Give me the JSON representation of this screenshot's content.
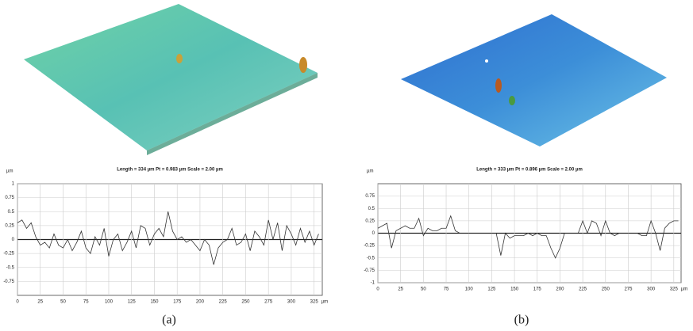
{
  "chart_data": [
    {
      "type": "line",
      "title": "Length = 334 µm  Pt = 0.983 µm  Scale = 2.00 µm",
      "y_label": "µm",
      "x_label": "µm",
      "caption": "(a)",
      "color": "#333333",
      "x": [
        0,
        5,
        10,
        15,
        20,
        25,
        30,
        35,
        40,
        45,
        50,
        55,
        60,
        65,
        70,
        75,
        80,
        85,
        90,
        95,
        100,
        105,
        110,
        115,
        120,
        125,
        130,
        135,
        140,
        145,
        150,
        155,
        160,
        165,
        170,
        175,
        180,
        185,
        190,
        195,
        200,
        205,
        210,
        215,
        220,
        225,
        230,
        235,
        240,
        245,
        250,
        255,
        260,
        265,
        270,
        275,
        280,
        285,
        290,
        295,
        300,
        305,
        310,
        315,
        320,
        325,
        330
      ],
      "values": [
        0.3,
        0.35,
        0.2,
        0.3,
        0.05,
        -0.1,
        -0.05,
        -0.15,
        0.1,
        -0.1,
        -0.15,
        0.0,
        -0.2,
        -0.05,
        0.15,
        -0.15,
        -0.25,
        0.05,
        -0.1,
        0.2,
        -0.3,
        0.0,
        0.1,
        -0.2,
        -0.05,
        0.15,
        -0.15,
        0.25,
        0.2,
        -0.1,
        0.1,
        0.2,
        0.05,
        0.5,
        0.15,
        0.0,
        0.05,
        -0.05,
        0.0,
        -0.1,
        -0.2,
        0.0,
        -0.1,
        -0.45,
        -0.15,
        -0.05,
        0.0,
        0.2,
        -0.1,
        -0.05,
        0.1,
        -0.2,
        0.15,
        0.05,
        -0.1,
        0.35,
        0.0,
        0.3,
        -0.2,
        0.25,
        0.1,
        -0.1,
        0.2,
        -0.05,
        0.15,
        -0.1,
        0.1
      ],
      "xlim": [
        0,
        334
      ],
      "xticks": [
        0,
        25,
        50,
        75,
        100,
        125,
        150,
        175,
        200,
        225,
        250,
        275,
        300,
        325
      ],
      "ylim": [
        -1,
        1
      ],
      "yticks": [
        -0.75,
        -0.5,
        -0.25,
        0,
        0.25,
        0.5,
        0.75,
        1
      ],
      "grid": true
    },
    {
      "type": "line",
      "title": "Length = 333 µm  Pt = 0.896 µm  Scale = 2.00 µm",
      "y_label": "µm",
      "x_label": "µm",
      "caption": "(b)",
      "color": "#333333",
      "x": [
        0,
        5,
        10,
        15,
        20,
        25,
        30,
        35,
        40,
        45,
        50,
        55,
        60,
        65,
        70,
        75,
        80,
        85,
        90,
        95,
        100,
        105,
        110,
        115,
        120,
        125,
        130,
        135,
        140,
        145,
        150,
        155,
        160,
        165,
        170,
        175,
        180,
        185,
        190,
        195,
        200,
        205,
        210,
        215,
        220,
        225,
        230,
        235,
        240,
        245,
        250,
        255,
        260,
        265,
        270,
        275,
        280,
        285,
        290,
        295,
        300,
        305,
        310,
        315,
        320,
        325,
        330
      ],
      "values": [
        0.1,
        0.15,
        0.2,
        -0.3,
        0.05,
        0.1,
        0.15,
        0.1,
        0.1,
        0.3,
        -0.05,
        0.1,
        0.05,
        0.05,
        0.1,
        0.1,
        0.35,
        0.05,
        0.0,
        0.0,
        0.0,
        0.0,
        0.0,
        0.0,
        0.0,
        0.0,
        0.0,
        -0.45,
        0.0,
        -0.1,
        -0.05,
        -0.05,
        -0.05,
        0.0,
        -0.05,
        0.0,
        -0.05,
        -0.05,
        -0.3,
        -0.5,
        -0.3,
        0.0,
        0.0,
        0.0,
        0.0,
        0.25,
        0.0,
        0.25,
        0.2,
        -0.05,
        0.25,
        0.0,
        -0.05,
        0.0,
        0.0,
        0.0,
        0.0,
        0.0,
        -0.05,
        -0.05,
        0.25,
        0.0,
        -0.35,
        0.1,
        0.2,
        0.25,
        0.25
      ],
      "xlim": [
        0,
        333
      ],
      "xticks": [
        0,
        25,
        50,
        75,
        100,
        125,
        150,
        175,
        200,
        225,
        250,
        275,
        300,
        325
      ],
      "ylim": [
        -1,
        1
      ],
      "yticks": [
        -1,
        -0.75,
        -0.5,
        -0.25,
        0,
        0.25,
        0.5,
        0.75
      ],
      "grid": true
    }
  ]
}
